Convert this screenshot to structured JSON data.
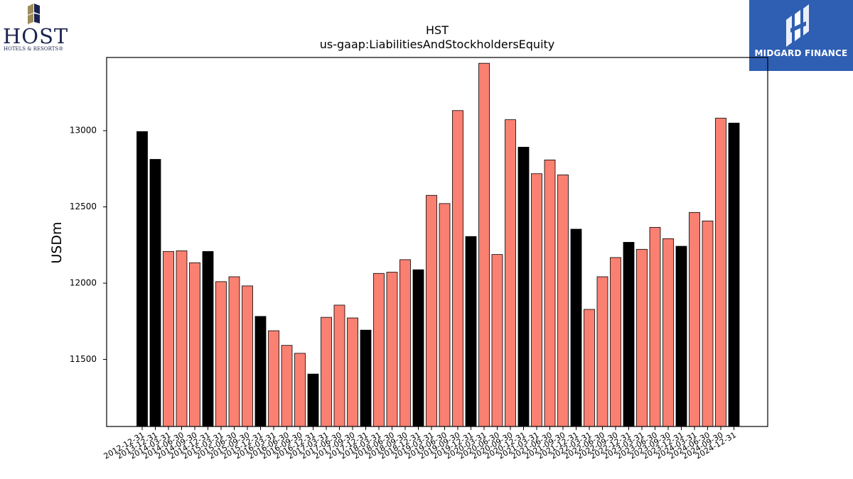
{
  "logos": {
    "host": {
      "name": "HOST",
      "tagline": "HOTELS & RESORTS®",
      "colors": {
        "gold": "#a08c5a",
        "navy": "#1b2450"
      }
    },
    "midgard": {
      "name": "MIDGARD FINANCE",
      "background": "#2f5fb3"
    }
  },
  "chart_data": {
    "type": "bar",
    "title": "HST",
    "subtitle": "us-gaap:LiabilitiesAndStockholdersEquity",
    "xlabel": "",
    "ylabel": "USDm",
    "ylim": [
      11060,
      13480
    ],
    "yticks": [
      11500,
      12000,
      12500,
      13000
    ],
    "grid": false,
    "colors": {
      "annual": "#000000",
      "quarterly": "#fa8072",
      "edge": "#000000"
    },
    "categories": [
      "2012-12-31",
      "2013-12-31",
      "2014-03-31",
      "2014-06-30",
      "2014-09-30",
      "2014-12-31",
      "2015-03-31",
      "2015-06-30",
      "2015-09-30",
      "2015-12-31",
      "2016-03-31",
      "2016-06-30",
      "2016-09-30",
      "2016-12-31",
      "2017-03-31",
      "2017-06-30",
      "2017-09-30",
      "2017-12-31",
      "2018-03-31",
      "2018-06-30",
      "2018-09-30",
      "2018-12-31",
      "2019-03-31",
      "2019-06-30",
      "2019-09-30",
      "2019-12-31",
      "2020-03-31",
      "2020-06-30",
      "2020-09-30",
      "2020-12-31",
      "2021-03-31",
      "2021-06-30",
      "2021-09-30",
      "2021-12-31",
      "2022-03-31",
      "2022-06-30",
      "2022-09-30",
      "2022-12-31",
      "2023-03-31",
      "2023-06-30",
      "2023-09-30",
      "2023-12-31",
      "2024-03-31",
      "2024-06-30",
      "2024-09-30",
      "2024-12-31"
    ],
    "values": [
      12994,
      12812,
      12208,
      12212,
      12134,
      12208,
      12010,
      12042,
      11982,
      11782,
      11688,
      11592,
      11540,
      11404,
      11776,
      11856,
      11772,
      11692,
      12064,
      12072,
      12154,
      12088,
      12576,
      12522,
      13132,
      12306,
      13442,
      12188,
      13072,
      12892,
      12718,
      12808,
      12710,
      12354,
      11828,
      12042,
      12168,
      12268,
      12222,
      12366,
      12292,
      12242,
      12464,
      12408,
      13082,
      13050
    ],
    "annual": [
      true,
      true,
      false,
      false,
      false,
      true,
      false,
      false,
      false,
      true,
      false,
      false,
      false,
      true,
      false,
      false,
      false,
      true,
      false,
      false,
      false,
      true,
      false,
      false,
      false,
      true,
      false,
      false,
      false,
      true,
      false,
      false,
      false,
      true,
      false,
      false,
      false,
      true,
      false,
      false,
      false,
      true,
      false,
      false,
      false,
      true
    ]
  }
}
